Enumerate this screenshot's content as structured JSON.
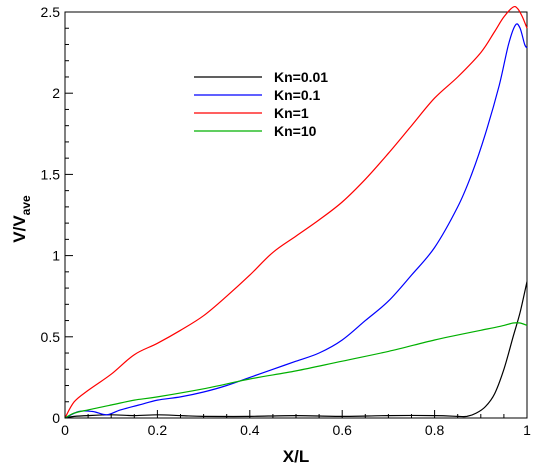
{
  "chart_data": {
    "type": "line",
    "xlabel": "X/L",
    "ylabel_main": "V/V",
    "ylabel_sub": "ave",
    "xlim": [
      0,
      1
    ],
    "ylim": [
      0,
      2.5
    ],
    "xticks": [
      0,
      0.2,
      0.4,
      0.6,
      0.8,
      1
    ],
    "xtick_labels": [
      "0",
      "0.2",
      "0.4",
      "0.6",
      "0.8",
      "1"
    ],
    "yticks": [
      0,
      0.5,
      1,
      1.5,
      2,
      2.5
    ],
    "ytick_labels": [
      "0",
      "0.5",
      "1",
      "1.5",
      "2",
      "2.5"
    ],
    "grid": false,
    "legend_position": "top-center",
    "series": [
      {
        "name": "Kn=0.01",
        "color": "#000000",
        "points": [
          [
            0,
            0
          ],
          [
            0.02,
            0.01
          ],
          [
            0.05,
            0.015
          ],
          [
            0.1,
            0.02
          ],
          [
            0.15,
            0.015
          ],
          [
            0.2,
            0.02
          ],
          [
            0.25,
            0.015
          ],
          [
            0.3,
            0.01
          ],
          [
            0.4,
            0.01
          ],
          [
            0.5,
            0.015
          ],
          [
            0.6,
            0.01
          ],
          [
            0.7,
            0.015
          ],
          [
            0.8,
            0.015
          ],
          [
            0.85,
            0.01
          ],
          [
            0.87,
            0.01
          ],
          [
            0.89,
            0.03
          ],
          [
            0.91,
            0.07
          ],
          [
            0.93,
            0.15
          ],
          [
            0.95,
            0.3
          ],
          [
            0.97,
            0.5
          ],
          [
            0.985,
            0.65
          ],
          [
            1.0,
            0.84
          ]
        ]
      },
      {
        "name": "Kn=0.1",
        "color": "#0000ff",
        "points": [
          [
            0,
            0
          ],
          [
            0.03,
            0.04
          ],
          [
            0.06,
            0.04
          ],
          [
            0.09,
            0.02
          ],
          [
            0.12,
            0.05
          ],
          [
            0.16,
            0.08
          ],
          [
            0.2,
            0.11
          ],
          [
            0.25,
            0.13
          ],
          [
            0.3,
            0.16
          ],
          [
            0.35,
            0.2
          ],
          [
            0.4,
            0.25
          ],
          [
            0.45,
            0.3
          ],
          [
            0.5,
            0.35
          ],
          [
            0.55,
            0.4
          ],
          [
            0.6,
            0.48
          ],
          [
            0.65,
            0.6
          ],
          [
            0.7,
            0.72
          ],
          [
            0.75,
            0.88
          ],
          [
            0.8,
            1.05
          ],
          [
            0.85,
            1.3
          ],
          [
            0.88,
            1.5
          ],
          [
            0.91,
            1.75
          ],
          [
            0.94,
            2.05
          ],
          [
            0.96,
            2.3
          ],
          [
            0.975,
            2.42
          ],
          [
            0.985,
            2.4
          ],
          [
            0.995,
            2.3
          ],
          [
            1.0,
            2.28
          ]
        ]
      },
      {
        "name": "Kn=1",
        "color": "#ff0000",
        "points": [
          [
            0,
            0
          ],
          [
            0.02,
            0.1
          ],
          [
            0.05,
            0.17
          ],
          [
            0.1,
            0.27
          ],
          [
            0.15,
            0.39
          ],
          [
            0.2,
            0.46
          ],
          [
            0.25,
            0.54
          ],
          [
            0.3,
            0.63
          ],
          [
            0.35,
            0.75
          ],
          [
            0.4,
            0.88
          ],
          [
            0.45,
            1.02
          ],
          [
            0.5,
            1.12
          ],
          [
            0.55,
            1.22
          ],
          [
            0.6,
            1.33
          ],
          [
            0.65,
            1.47
          ],
          [
            0.7,
            1.63
          ],
          [
            0.75,
            1.8
          ],
          [
            0.8,
            1.97
          ],
          [
            0.85,
            2.1
          ],
          [
            0.9,
            2.25
          ],
          [
            0.93,
            2.38
          ],
          [
            0.95,
            2.47
          ],
          [
            0.97,
            2.53
          ],
          [
            0.98,
            2.52
          ],
          [
            0.99,
            2.47
          ],
          [
            1.0,
            2.4
          ]
        ]
      },
      {
        "name": "Kn=10",
        "color": "#00b000",
        "points": [
          [
            0,
            0
          ],
          [
            0.02,
            0.03
          ],
          [
            0.05,
            0.05
          ],
          [
            0.1,
            0.08
          ],
          [
            0.15,
            0.11
          ],
          [
            0.2,
            0.13
          ],
          [
            0.3,
            0.18
          ],
          [
            0.4,
            0.24
          ],
          [
            0.5,
            0.29
          ],
          [
            0.6,
            0.35
          ],
          [
            0.7,
            0.41
          ],
          [
            0.8,
            0.48
          ],
          [
            0.9,
            0.54
          ],
          [
            0.95,
            0.57
          ],
          [
            0.97,
            0.585
          ],
          [
            0.985,
            0.585
          ],
          [
            1.0,
            0.57
          ]
        ]
      }
    ]
  }
}
